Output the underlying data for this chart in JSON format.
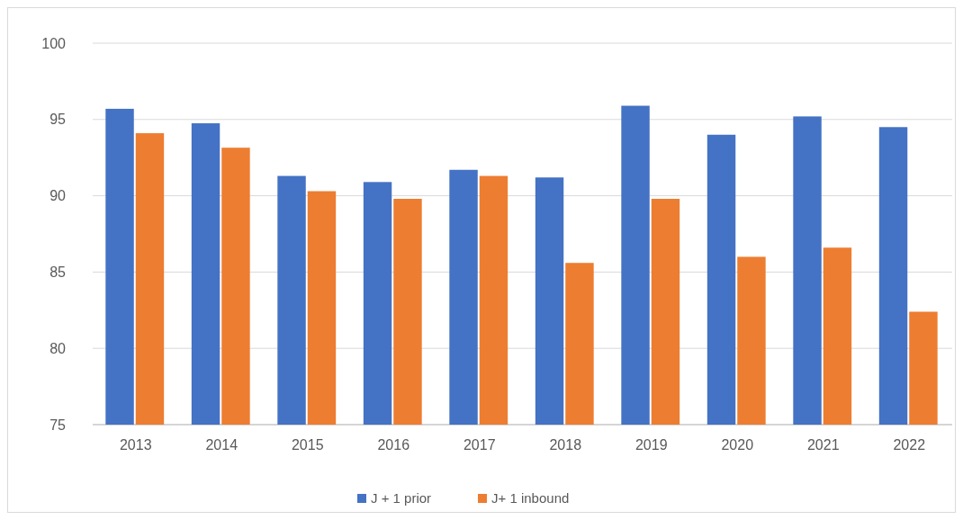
{
  "chart_data": {
    "type": "bar",
    "categories": [
      "2013",
      "2014",
      "2015",
      "2016",
      "2017",
      "2018",
      "2019",
      "2020",
      "2021",
      "2022"
    ],
    "series": [
      {
        "name": "J + 1 prior",
        "color": "#4472c4",
        "values": [
          95.7,
          94.75,
          91.3,
          90.9,
          91.7,
          91.2,
          95.9,
          94.0,
          95.2,
          94.5
        ]
      },
      {
        "name": "J+ 1 inbound",
        "color": "#ed7d31",
        "values": [
          94.1,
          93.15,
          90.3,
          89.8,
          91.3,
          85.6,
          89.8,
          86.0,
          86.6,
          82.4
        ]
      }
    ],
    "ylim": [
      75,
      100
    ],
    "yticks": [
      75,
      80,
      85,
      90,
      95,
      100
    ],
    "grid": "y",
    "legend": "bottom"
  }
}
